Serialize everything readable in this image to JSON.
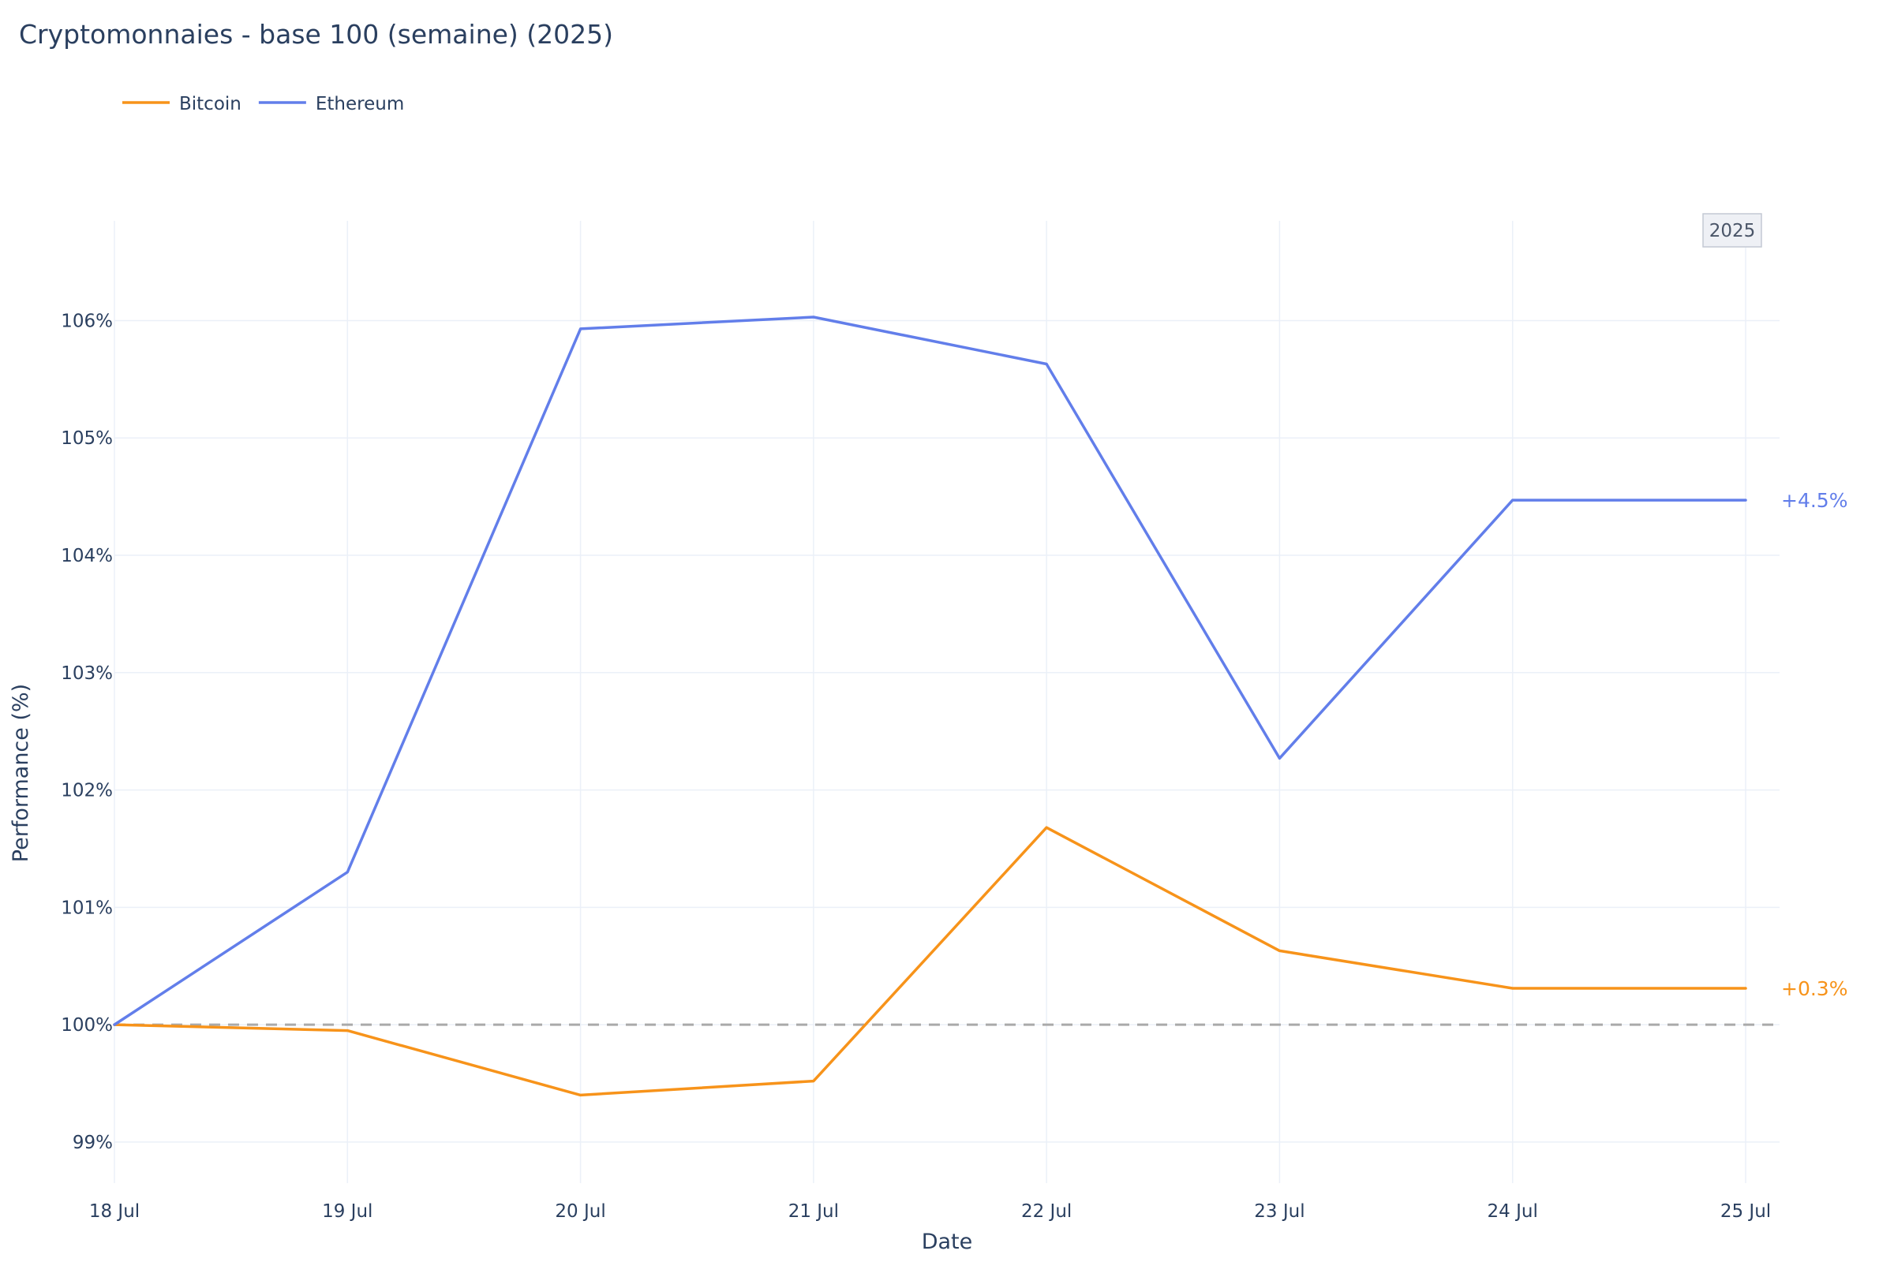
{
  "chart_data": {
    "type": "line",
    "title": "Cryptomonnaies - base 100 (semaine) (2025)",
    "xlabel": "Date",
    "ylabel": "Performance (%)",
    "categories": [
      "18 Jul",
      "19 Jul",
      "20 Jul",
      "21 Jul",
      "22 Jul",
      "23 Jul",
      "24 Jul",
      "25 Jul"
    ],
    "x_dates": [
      "2025-07-18",
      "2025-07-19",
      "2025-07-20",
      "2025-07-21",
      "2025-07-22",
      "2025-07-23",
      "2025-07-24",
      "2025-07-25"
    ],
    "ylim": [
      98.65,
      106.85
    ],
    "yticks": [
      99,
      100,
      101,
      102,
      103,
      104,
      105,
      106
    ],
    "ytick_suffix": "%",
    "grid": true,
    "legend": "top-left",
    "reference_line": {
      "y": 100,
      "style": "dashed",
      "color": "#aaaaaa"
    },
    "year_badge": "2025",
    "series": [
      {
        "name": "Bitcoin",
        "color": "#f7931a",
        "values": [
          100.0,
          99.95,
          99.4,
          99.52,
          101.68,
          100.63,
          100.31,
          100.31
        ],
        "end_label": "+0.3%"
      },
      {
        "name": "Ethereum",
        "color": "#627eea",
        "values": [
          100.0,
          101.3,
          105.93,
          106.03,
          105.63,
          102.27,
          104.47,
          104.47
        ],
        "end_label": "+4.5%"
      }
    ]
  }
}
